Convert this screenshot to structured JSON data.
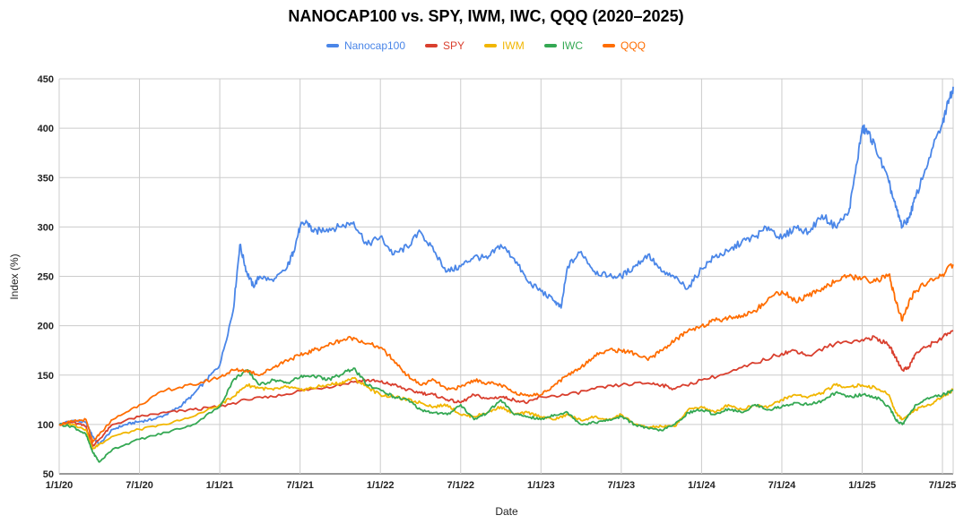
{
  "chart_data": {
    "type": "line",
    "title": "NANOCAP100 vs. SPY, IWM, IWC, QQQ (2020–2025)",
    "xlabel": "Date",
    "ylabel": "Index (%)",
    "ylim": [
      50,
      450
    ],
    "yticks": [
      50,
      100,
      150,
      200,
      250,
      300,
      350,
      400,
      450
    ],
    "xlim": [
      0,
      66.8
    ],
    "xticks": [
      {
        "label": "1/1/20",
        "value": 0
      },
      {
        "label": "7/1/20",
        "value": 6
      },
      {
        "label": "1/1/21",
        "value": 12
      },
      {
        "label": "7/1/21",
        "value": 18
      },
      {
        "label": "1/1/22",
        "value": 24
      },
      {
        "label": "7/1/22",
        "value": 30
      },
      {
        "label": "1/1/23",
        "value": 36
      },
      {
        "label": "7/1/23",
        "value": 42
      },
      {
        "label": "1/1/24",
        "value": 48
      },
      {
        "label": "7/1/24",
        "value": 54
      },
      {
        "label": "1/1/25",
        "value": 60
      },
      {
        "label": "7/1/25",
        "value": 66
      }
    ],
    "grid": true,
    "legend_position": "top-center",
    "series": [
      {
        "name": "Nanocap100",
        "color": "#4a86e8",
        "x": [
          0,
          1,
          2,
          2.5,
          3,
          4,
          5,
          6,
          7,
          8,
          9,
          10,
          11,
          12,
          13,
          13.5,
          14,
          14.5,
          15,
          16,
          17,
          17.5,
          18,
          18.5,
          19,
          20,
          21,
          22,
          23,
          24,
          25,
          26,
          27,
          28,
          29,
          30,
          31,
          32,
          33,
          34,
          35,
          36,
          37,
          37.5,
          38,
          39,
          40,
          41,
          42,
          43,
          44,
          45,
          46,
          47,
          48,
          49,
          50,
          51,
          52,
          53,
          54,
          55,
          56,
          57,
          58,
          59,
          59.5,
          60,
          60.5,
          61,
          62,
          62.5,
          63,
          63.5,
          64,
          65,
          66,
          66.5,
          66.8
        ],
        "y": [
          100,
          104,
          102,
          88,
          80,
          95,
          100,
          103,
          105,
          110,
          118,
          130,
          145,
          160,
          215,
          282,
          255,
          240,
          250,
          245,
          258,
          275,
          300,
          305,
          295,
          298,
          300,
          305,
          282,
          290,
          272,
          280,
          295,
          275,
          255,
          260,
          270,
          268,
          282,
          268,
          245,
          235,
          225,
          218,
          260,
          275,
          255,
          250,
          250,
          260,
          272,
          255,
          248,
          238,
          258,
          270,
          275,
          285,
          290,
          300,
          288,
          300,
          295,
          312,
          300,
          315,
          355,
          400,
          395,
          380,
          345,
          320,
          300,
          310,
          330,
          370,
          405,
          430,
          442
        ]
      },
      {
        "name": "SPY",
        "color": "#d93f2e",
        "x": [
          0,
          1,
          2,
          2.5,
          3,
          4,
          6,
          8,
          10,
          12,
          14,
          16,
          18,
          20,
          22,
          23,
          24,
          25,
          26,
          27,
          28,
          29,
          30,
          31,
          32,
          33,
          34,
          35,
          36,
          38,
          40,
          42,
          44,
          45,
          46,
          48,
          50,
          52,
          54,
          55,
          56,
          58,
          60,
          61,
          62,
          62.5,
          63,
          63.5,
          64,
          65,
          66,
          66.8
        ],
        "y": [
          100,
          102,
          98,
          78,
          85,
          100,
          108,
          112,
          115,
          118,
          125,
          128,
          134,
          138,
          143,
          145,
          143,
          140,
          135,
          132,
          130,
          125,
          122,
          130,
          126,
          128,
          125,
          122,
          128,
          130,
          136,
          140,
          142,
          140,
          136,
          145,
          152,
          162,
          172,
          175,
          170,
          182,
          186,
          188,
          180,
          168,
          155,
          158,
          172,
          180,
          188,
          195
        ]
      },
      {
        "name": "IWM",
        "color": "#f1b600",
        "x": [
          0,
          1,
          2,
          2.5,
          3,
          4,
          6,
          8,
          10,
          12,
          13,
          14,
          15,
          16,
          17,
          18,
          19,
          20,
          21,
          22,
          23,
          24,
          25,
          26,
          27,
          28,
          29,
          30,
          31,
          32,
          33,
          34,
          35,
          36,
          37,
          38,
          39,
          40,
          41,
          42,
          43,
          44,
          45,
          46,
          47,
          48,
          49,
          50,
          51,
          52,
          53,
          54,
          55,
          56,
          57,
          58,
          59,
          60,
          61,
          62,
          62.5,
          63,
          63.5,
          64,
          65,
          66,
          66.8
        ],
        "y": [
          100,
          100,
          95,
          75,
          80,
          88,
          95,
          100,
          108,
          120,
          128,
          140,
          137,
          135,
          138,
          135,
          137,
          140,
          142,
          147,
          138,
          130,
          128,
          125,
          122,
          118,
          120,
          110,
          108,
          112,
          118,
          110,
          112,
          108,
          105,
          110,
          104,
          108,
          104,
          110,
          100,
          97,
          98,
          98,
          115,
          118,
          112,
          120,
          115,
          120,
          118,
          125,
          130,
          128,
          132,
          140,
          138,
          140,
          137,
          130,
          112,
          105,
          110,
          115,
          120,
          128,
          135
        ]
      },
      {
        "name": "IWC",
        "color": "#34a853",
        "x": [
          0,
          1,
          2,
          2.5,
          3,
          4,
          6,
          8,
          10,
          12,
          13,
          14,
          15,
          16,
          17,
          18,
          19,
          20,
          21,
          22,
          23,
          24,
          25,
          26,
          27,
          28,
          29,
          30,
          31,
          32,
          33,
          34,
          35,
          36,
          37,
          38,
          39,
          40,
          41,
          42,
          43,
          44,
          45,
          46,
          47,
          48,
          49,
          50,
          51,
          52,
          53,
          54,
          55,
          56,
          57,
          58,
          59,
          60,
          61,
          62,
          62.5,
          63,
          63.5,
          64,
          65,
          66,
          66.8
        ],
        "y": [
          100,
          98,
          90,
          72,
          62,
          75,
          85,
          92,
          100,
          118,
          145,
          155,
          140,
          145,
          142,
          148,
          150,
          145,
          150,
          157,
          140,
          135,
          128,
          125,
          115,
          112,
          110,
          120,
          105,
          112,
          125,
          110,
          108,
          105,
          110,
          112,
          100,
          102,
          104,
          108,
          100,
          96,
          94,
          100,
          112,
          115,
          110,
          116,
          112,
          120,
          115,
          118,
          122,
          120,
          124,
          132,
          128,
          130,
          128,
          118,
          105,
          100,
          110,
          120,
          126,
          130,
          135
        ]
      },
      {
        "name": "QQQ",
        "color": "#ff6d01",
        "x": [
          0,
          1,
          2,
          2.5,
          3,
          4,
          6,
          8,
          10,
          12,
          13,
          14,
          15,
          16,
          17,
          18,
          19,
          20,
          21,
          22,
          23,
          24,
          25,
          26,
          27,
          28,
          29,
          30,
          31,
          32,
          33,
          34,
          35,
          36,
          37,
          38,
          39,
          40,
          41,
          42,
          43,
          44,
          45,
          46,
          47,
          48,
          49,
          50,
          51,
          52,
          53,
          54,
          55,
          56,
          57,
          58,
          59,
          60,
          61,
          62,
          62.5,
          63,
          63.5,
          64,
          65,
          66,
          66.8
        ],
        "y": [
          100,
          103,
          105,
          82,
          90,
          105,
          120,
          135,
          140,
          148,
          155,
          155,
          150,
          158,
          165,
          170,
          175,
          180,
          185,
          188,
          182,
          178,
          165,
          150,
          140,
          145,
          135,
          138,
          145,
          142,
          140,
          132,
          130,
          130,
          140,
          150,
          158,
          170,
          175,
          175,
          172,
          165,
          175,
          185,
          195,
          200,
          205,
          208,
          210,
          215,
          228,
          235,
          225,
          230,
          238,
          245,
          250,
          248,
          245,
          252,
          225,
          205,
          225,
          235,
          245,
          252,
          262
        ]
      }
    ]
  }
}
